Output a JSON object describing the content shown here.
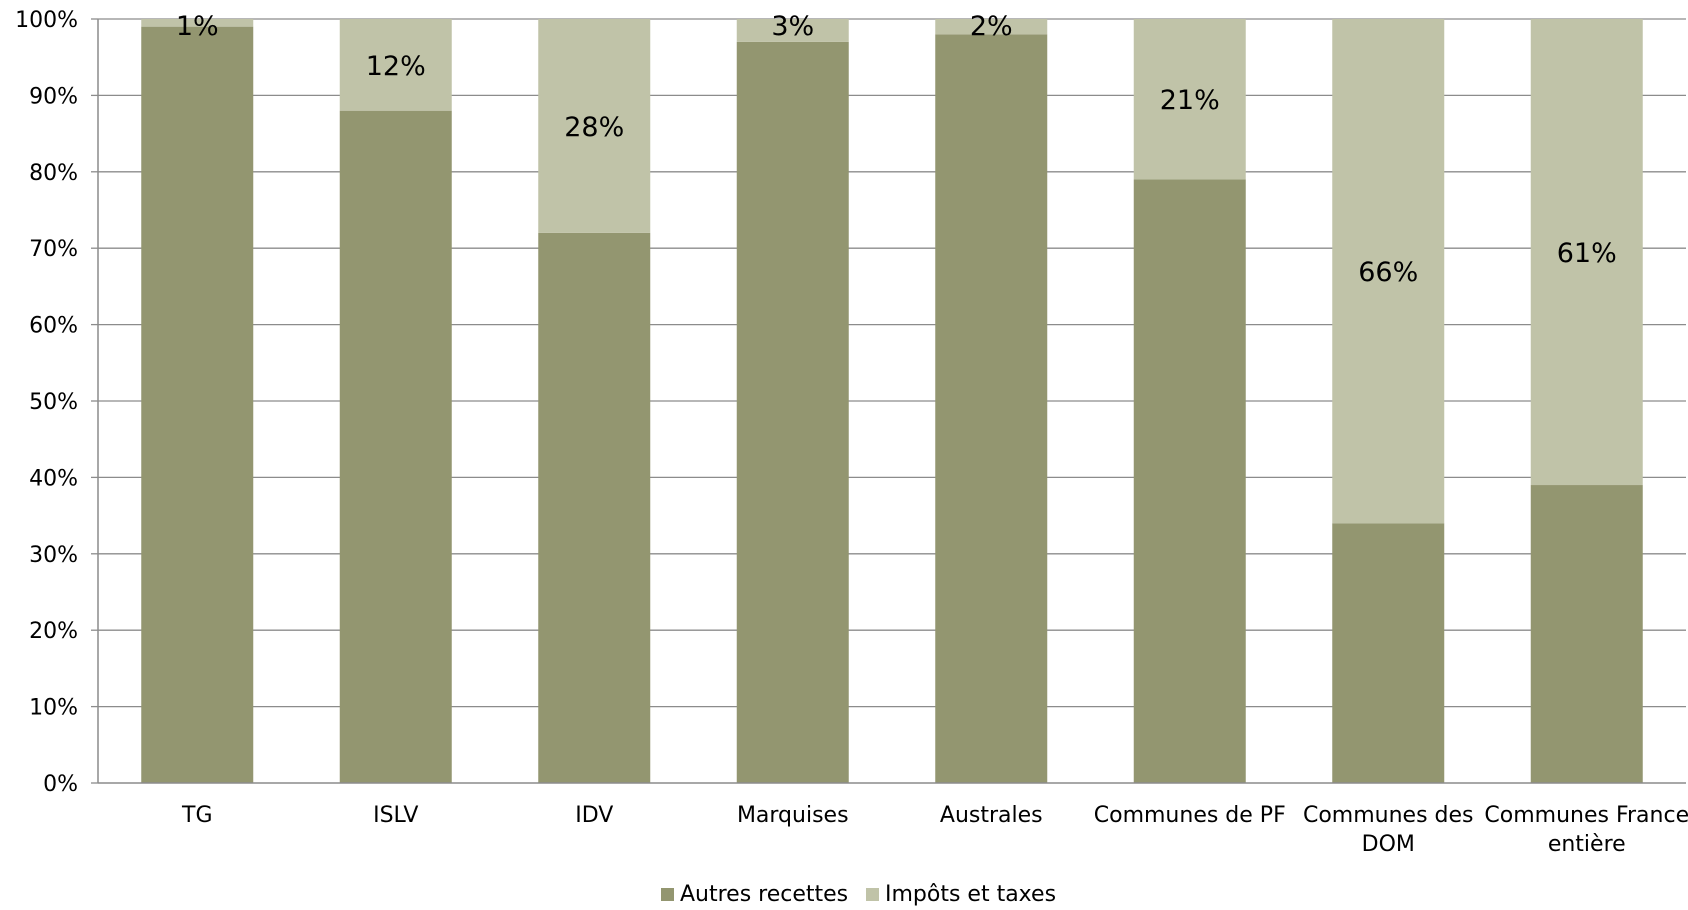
{
  "chart_data": {
    "type": "bar",
    "stacked": true,
    "categories": [
      [
        "TG"
      ],
      [
        "ISLV"
      ],
      [
        "IDV"
      ],
      [
        "Marquises"
      ],
      [
        "Australes"
      ],
      [
        "Communes de PF"
      ],
      [
        "Communes des",
        "DOM"
      ],
      [
        "Communes France",
        "entière"
      ]
    ],
    "series": [
      {
        "name": "Autres recettes",
        "color": "#939670",
        "values": [
          99,
          88,
          72,
          97,
          98,
          79,
          34,
          39
        ]
      },
      {
        "name": "Impôts et taxes",
        "color": "#c0c3a8",
        "values": [
          1,
          12,
          28,
          3,
          2,
          21,
          66,
          61
        ]
      }
    ],
    "data_labels": [
      "1%",
      "12%",
      "28%",
      "3%",
      "2%",
      "21%",
      "66%",
      "61%"
    ],
    "ylim": [
      0,
      100
    ],
    "yticks": [
      "0%",
      "10%",
      "20%",
      "30%",
      "40%",
      "50%",
      "60%",
      "70%",
      "80%",
      "90%",
      "100%"
    ],
    "grid": true,
    "legend_position": "bottom",
    "title": "",
    "xlabel": "",
    "ylabel": ""
  }
}
